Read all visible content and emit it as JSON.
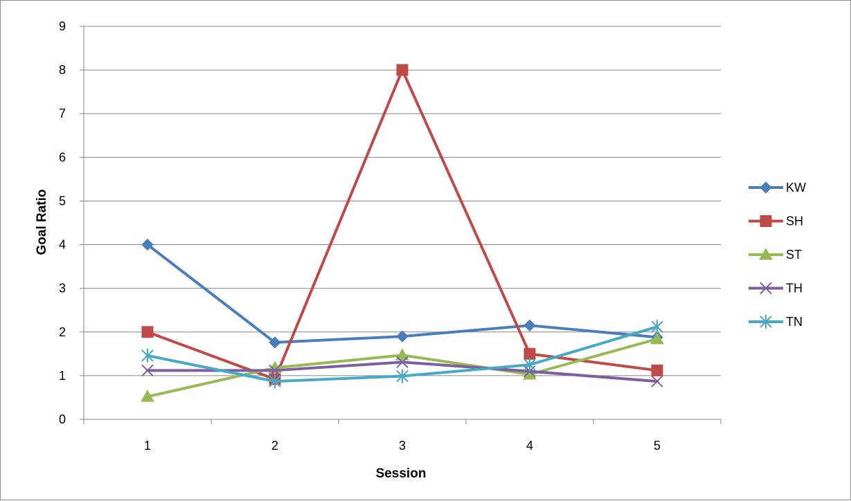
{
  "chart_data": {
    "type": "line",
    "title": "",
    "xlabel": "Session",
    "ylabel": "Goal Ratio",
    "categories": [
      "1",
      "2",
      "3",
      "4",
      "5"
    ],
    "ylim": [
      0,
      9
    ],
    "yticks": [
      "0",
      "1",
      "2",
      "3",
      "4",
      "5",
      "6",
      "7",
      "8",
      "9"
    ],
    "grid": "horizontal",
    "legend_position": "right",
    "series": [
      {
        "name": "KW",
        "color": "#4a7ebb",
        "marker": "diamond",
        "values": [
          4.0,
          1.76,
          1.9,
          2.15,
          1.88
        ]
      },
      {
        "name": "SH",
        "color": "#be4b48",
        "marker": "square",
        "values": [
          2.0,
          0.92,
          8.0,
          1.5,
          1.12
        ]
      },
      {
        "name": "ST",
        "color": "#98b954",
        "marker": "triangle",
        "values": [
          0.52,
          1.18,
          1.47,
          1.03,
          1.84
        ]
      },
      {
        "name": "TH",
        "color": "#7d5fa0",
        "marker": "x",
        "values": [
          1.12,
          1.12,
          1.31,
          1.1,
          0.87
        ]
      },
      {
        "name": "TN",
        "color": "#46aac5",
        "marker": "star",
        "values": [
          1.46,
          0.87,
          0.99,
          1.25,
          2.12
        ]
      }
    ]
  }
}
